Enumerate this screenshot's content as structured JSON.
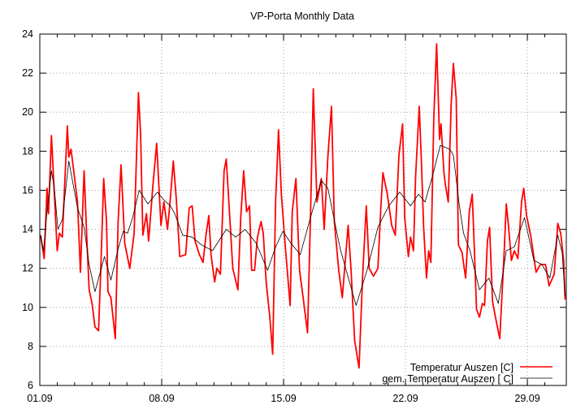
{
  "chart_data": {
    "type": "line",
    "title": "VP-Porta Monthly Data",
    "xlabel": "",
    "ylabel": "",
    "xlim": [
      "01.09 00:00",
      "01.10 06:00"
    ],
    "ylim": [
      6,
      24
    ],
    "y_ticks": [
      6,
      8,
      10,
      12,
      14,
      16,
      18,
      20,
      22,
      24
    ],
    "x_ticks": [
      {
        "label": "01.09",
        "at": "01.09 00:00"
      },
      {
        "label": "08.09",
        "at": "08.09 00:00"
      },
      {
        "label": "15.09",
        "at": "15.09 00:00"
      },
      {
        "label": "22.09",
        "at": "22.09 00:00"
      },
      {
        "label": "29.09",
        "at": "29.09 00:00"
      }
    ],
    "x_minor_tick_interval": "1 day",
    "grid": true,
    "legend_position": "bottom-right",
    "series": [
      {
        "name": "Temperatur Auszen [C]",
        "color": "#ff0000",
        "points": [
          [
            "01.09 01:00",
            13.7
          ],
          [
            "01.09 06:00",
            12.5
          ],
          [
            "01.09 10:00",
            16.1
          ],
          [
            "01.09 12:00",
            14.8
          ],
          [
            "01.09 16:00",
            18.8
          ],
          [
            "01.09 20:00",
            15.8
          ],
          [
            "02.09 00:00",
            12.9
          ],
          [
            "02.09 03:00",
            13.8
          ],
          [
            "02.09 07:00",
            13.6
          ],
          [
            "02.09 14:00",
            19.3
          ],
          [
            "02.09 16:00",
            17.7
          ],
          [
            "02.09 19:00",
            18.1
          ],
          [
            "03.09 00:00",
            16.6
          ],
          [
            "03.09 04:00",
            15.4
          ],
          [
            "03.09 08:00",
            11.8
          ],
          [
            "03.09 13:00",
            17.0
          ],
          [
            "03.09 17:00",
            13.4
          ],
          [
            "03.09 20:00",
            10.9
          ],
          [
            "04.09 00:00",
            10.2
          ],
          [
            "04.09 04:00",
            9.0
          ],
          [
            "04.09 09:00",
            8.8
          ],
          [
            "04.09 12:00",
            11.9
          ],
          [
            "04.09 16:00",
            16.6
          ],
          [
            "04.09 20:00",
            14.4
          ],
          [
            "04.09 22:00",
            10.8
          ],
          [
            "05.09 02:00",
            10.5
          ],
          [
            "05.09 08:00",
            8.4
          ],
          [
            "05.09 12:00",
            14.4
          ],
          [
            "05.09 16:00",
            17.3
          ],
          [
            "05.09 21:00",
            13.3
          ],
          [
            "06.09 04:00",
            12.0
          ],
          [
            "06.09 10:00",
            13.8
          ],
          [
            "06.09 16:00",
            21.0
          ],
          [
            "06.09 19:00",
            18.8
          ],
          [
            "06.09 22:00",
            13.7
          ],
          [
            "07.09 03:00",
            14.8
          ],
          [
            "07.09 06:00",
            13.4
          ],
          [
            "07.09 12:00",
            16.3
          ],
          [
            "07.09 17:00",
            18.4
          ],
          [
            "07.09 23:00",
            14.2
          ],
          [
            "08.09 03:00",
            15.4
          ],
          [
            "08.09 08:00",
            14.0
          ],
          [
            "08.09 12:00",
            15.6
          ],
          [
            "08.09 16:00",
            17.5
          ],
          [
            "08.09 20:00",
            15.6
          ],
          [
            "09.09 01:00",
            12.6
          ],
          [
            "09.09 09:00",
            12.7
          ],
          [
            "09.09 14:00",
            15.1
          ],
          [
            "09.09 18:00",
            15.2
          ],
          [
            "09.09 22:00",
            13.4
          ],
          [
            "10.09 04:00",
            12.7
          ],
          [
            "10.09 09:00",
            12.3
          ],
          [
            "10.09 13:00",
            13.7
          ],
          [
            "10.09 17:00",
            14.7
          ],
          [
            "10.09 20:00",
            12.7
          ],
          [
            "11.09 01:00",
            11.3
          ],
          [
            "11.09 04:00",
            12.0
          ],
          [
            "11.09 09:00",
            11.7
          ],
          [
            "11.09 14:00",
            17.0
          ],
          [
            "11.09 17:00",
            17.6
          ],
          [
            "11.09 21:00",
            15.1
          ],
          [
            "12.09 02:00",
            12.0
          ],
          [
            "12.09 09:00",
            10.9
          ],
          [
            "12.09 13:00",
            14.6
          ],
          [
            "12.09 17:00",
            17.0
          ],
          [
            "12.09 21:00",
            14.9
          ],
          [
            "13.09 01:00",
            15.2
          ],
          [
            "13.09 04:00",
            11.9
          ],
          [
            "13.09 08:00",
            11.9
          ],
          [
            "13.09 12:00",
            13.6
          ],
          [
            "13.09 17:00",
            14.4
          ],
          [
            "13.09 20:00",
            13.8
          ],
          [
            "14.09 00:00",
            11.3
          ],
          [
            "14.09 05:00",
            9.5
          ],
          [
            "14.09 09:00",
            7.6
          ],
          [
            "14.09 13:00",
            15.4
          ],
          [
            "14.09 17:00",
            19.1
          ],
          [
            "14.09 21:00",
            15.8
          ],
          [
            "15.09 02:00",
            13.3
          ],
          [
            "15.09 09:00",
            10.1
          ],
          [
            "15.09 12:00",
            14.9
          ],
          [
            "15.09 17:00",
            16.6
          ],
          [
            "15.09 22:00",
            11.9
          ],
          [
            "16.09 03:00",
            10.5
          ],
          [
            "16.09 09:00",
            8.7
          ],
          [
            "16.09 13:00",
            14.6
          ],
          [
            "16.09 17:00",
            21.2
          ],
          [
            "16.09 22:00",
            15.4
          ],
          [
            "17.09 04:00",
            16.6
          ],
          [
            "17.09 08:00",
            14.0
          ],
          [
            "17.09 13:00",
            17.7
          ],
          [
            "17.09 18:00",
            20.3
          ],
          [
            "17.09 22:00",
            14.4
          ],
          [
            "18.09 04:00",
            11.9
          ],
          [
            "18.09 09:00",
            10.5
          ],
          [
            "18.09 12:00",
            11.9
          ],
          [
            "18.09 17:00",
            14.2
          ],
          [
            "18.09 21:00",
            11.9
          ],
          [
            "19.09 02:00",
            8.3
          ],
          [
            "19.09 08:00",
            6.9
          ],
          [
            "19.09 13:00",
            11.6
          ],
          [
            "19.09 18:00",
            15.2
          ],
          [
            "19.09 22:00",
            12.0
          ],
          [
            "20.09 04:00",
            11.6
          ],
          [
            "20.09 10:00",
            12.0
          ],
          [
            "20.09 14:00",
            15.1
          ],
          [
            "20.09 17:00",
            16.9
          ],
          [
            "20.09 23:00",
            15.8
          ],
          [
            "21.09 05:00",
            14.2
          ],
          [
            "21.09 10:00",
            13.7
          ],
          [
            "21.09 15:00",
            17.8
          ],
          [
            "21.09 20:00",
            19.4
          ],
          [
            "21.09 23:00",
            14.6
          ],
          [
            "22.09 04:00",
            12.6
          ],
          [
            "22.09 07:00",
            13.6
          ],
          [
            "22.09 11:00",
            12.9
          ],
          [
            "22.09 14:00",
            16.7
          ],
          [
            "22.09 19:00",
            20.3
          ],
          [
            "22.09 22:00",
            17.4
          ],
          [
            "23.09 01:00",
            14.1
          ],
          [
            "23.09 05:00",
            11.5
          ],
          [
            "23.09 08:00",
            12.9
          ],
          [
            "23.09 11:00",
            12.3
          ],
          [
            "23.09 15:00",
            19.7
          ],
          [
            "23.09 19:00",
            23.5
          ],
          [
            "23.09 23:00",
            18.6
          ],
          [
            "24.09 01:00",
            19.4
          ],
          [
            "24.09 05:00",
            16.9
          ],
          [
            "24.09 07:00",
            16.3
          ],
          [
            "24.09 11:00",
            15.4
          ],
          [
            "24.09 15:00",
            20.4
          ],
          [
            "24.09 18:00",
            22.5
          ],
          [
            "24.09 22:00",
            20.7
          ],
          [
            "25.09 01:00",
            13.2
          ],
          [
            "25.09 06:00",
            12.8
          ],
          [
            "25.09 11:00",
            11.5
          ],
          [
            "25.09 16:00",
            14.9
          ],
          [
            "25.09 20:00",
            15.8
          ],
          [
            "25.09 22:00",
            13.9
          ],
          [
            "26.09 02:00",
            9.9
          ],
          [
            "26.09 06:00",
            9.5
          ],
          [
            "26.09 10:00",
            10.2
          ],
          [
            "26.09 13:00",
            10.1
          ],
          [
            "26.09 17:00",
            13.4
          ],
          [
            "26.09 20:00",
            14.1
          ],
          [
            "27.09 00:00",
            10.3
          ],
          [
            "27.09 04:00",
            9.5
          ],
          [
            "27.09 10:00",
            8.4
          ],
          [
            "27.09 16:00",
            12.8
          ],
          [
            "27.09 19:00",
            15.3
          ],
          [
            "27.09 22:00",
            14.2
          ],
          [
            "28.09 02:00",
            12.4
          ],
          [
            "28.09 06:00",
            12.9
          ],
          [
            "28.09 11:00",
            12.5
          ],
          [
            "28.09 16:00",
            15.4
          ],
          [
            "28.09 19:00",
            16.1
          ],
          [
            "28.09 23:00",
            14.7
          ],
          [
            "29.09 05:00",
            13.6
          ],
          [
            "29.09 12:00",
            11.8
          ],
          [
            "29.09 18:00",
            12.2
          ],
          [
            "30.09 01:00",
            12.2
          ],
          [
            "30.09 06:00",
            11.1
          ],
          [
            "30.09 13:00",
            11.7
          ],
          [
            "30.09 18:00",
            14.3
          ],
          [
            "30.09 22:00",
            13.8
          ],
          [
            "01.10 02:00",
            12.4
          ],
          [
            "01.10 04:00",
            10.4
          ]
        ]
      },
      {
        "name": "gem. Temperatur Auszen [ C]",
        "color": "#000000",
        "points": [
          [
            "01.09 01:00",
            13.7
          ],
          [
            "01.09 05:00",
            12.9
          ],
          [
            "01.09 10:00",
            14.9
          ],
          [
            "01.09 16:00",
            17.0
          ],
          [
            "01.09 20:00",
            16.1
          ],
          [
            "02.09 01:00",
            14.0
          ],
          [
            "02.09 07:00",
            14.5
          ],
          [
            "02.09 16:00",
            17.5
          ],
          [
            "03.09 04:00",
            15.1
          ],
          [
            "03.09 13:00",
            14.1
          ],
          [
            "03.09 20:00",
            12.2
          ],
          [
            "04.09 04:00",
            10.8
          ],
          [
            "04.09 17:00",
            12.6
          ],
          [
            "05.09 02:00",
            11.4
          ],
          [
            "05.09 12:00",
            13.0
          ],
          [
            "05.09 19:00",
            13.9
          ],
          [
            "06.09 01:00",
            13.8
          ],
          [
            "06.09 08:00",
            14.6
          ],
          [
            "06.09 17:00",
            16.0
          ],
          [
            "07.09 05:00",
            15.3
          ],
          [
            "07.09 18:00",
            15.9
          ],
          [
            "08.09 03:00",
            15.5
          ],
          [
            "08.09 12:00",
            15.2
          ],
          [
            "08.09 18:00",
            14.8
          ],
          [
            "09.09 05:00",
            13.7
          ],
          [
            "09.09 18:00",
            13.6
          ],
          [
            "10.09 07:00",
            13.2
          ],
          [
            "10.09 22:00",
            12.9
          ],
          [
            "11.09 17:00",
            14.0
          ],
          [
            "12.09 06:00",
            13.6
          ],
          [
            "12.09 19:00",
            14.0
          ],
          [
            "13.09 10:00",
            13.3
          ],
          [
            "14.09 02:00",
            11.9
          ],
          [
            "14.09 12:00",
            13.0
          ],
          [
            "14.09 23:00",
            13.9
          ],
          [
            "15.09 10:00",
            13.3
          ],
          [
            "15.09 23:00",
            12.7
          ],
          [
            "16.09 13:00",
            14.6
          ],
          [
            "17.09 04:00",
            16.5
          ],
          [
            "17.09 13:00",
            16.1
          ],
          [
            "18.09 06:00",
            13.0
          ],
          [
            "19.09 04:00",
            10.1
          ],
          [
            "19.09 19:00",
            11.9
          ],
          [
            "20.09 10:00",
            14.1
          ],
          [
            "21.09 01:00",
            15.2
          ],
          [
            "21.09 16:00",
            15.9
          ],
          [
            "22.09 07:00",
            15.2
          ],
          [
            "22.09 18:00",
            15.8
          ],
          [
            "23.09 03:00",
            15.4
          ],
          [
            "23.09 13:00",
            16.7
          ],
          [
            "24.09 00:00",
            18.3
          ],
          [
            "24.09 13:00",
            18.1
          ],
          [
            "24.09 18:00",
            17.8
          ],
          [
            "25.09 02:00",
            15.3
          ],
          [
            "25.09 08:00",
            13.8
          ],
          [
            "25.09 17:00",
            12.9
          ],
          [
            "26.09 06:00",
            10.9
          ],
          [
            "26.09 19:00",
            11.5
          ],
          [
            "27.09 08:00",
            10.2
          ],
          [
            "27.09 19:00",
            12.9
          ],
          [
            "28.09 06:00",
            13.1
          ],
          [
            "28.09 20:00",
            14.6
          ],
          [
            "29.09 09:00",
            12.4
          ],
          [
            "29.09 20:00",
            12.2
          ],
          [
            "30.09 07:00",
            11.5
          ],
          [
            "30.09 18:00",
            13.7
          ],
          [
            "01.10 00:00",
            12.8
          ],
          [
            "01.10 04:00",
            10.6
          ]
        ]
      }
    ]
  }
}
